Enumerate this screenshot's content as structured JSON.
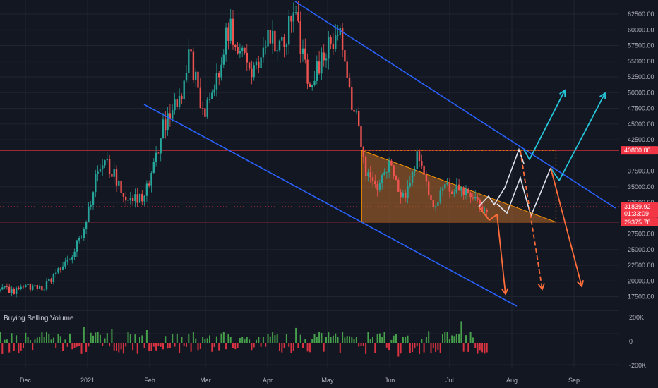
{
  "chart_data": {
    "type": "candlestick",
    "title": "",
    "x_ticks": [
      "Dec",
      "2021",
      "Feb",
      "Mar",
      "Apr",
      "May",
      "Jun",
      "Jul",
      "Aug",
      "Sep"
    ],
    "y_ticks": [
      17500,
      20000,
      22500,
      25000,
      27500,
      32500,
      35000,
      37500,
      42500,
      45000,
      47500,
      50000,
      52500,
      55000,
      57500,
      60000,
      62500
    ],
    "y_tick_labels": [
      "17500.00",
      "20000.00",
      "22500.00",
      "25000.00",
      "27500.00",
      "32500.00",
      "35000.00",
      "37500.00",
      "42500.00",
      "45000.00",
      "47500.00",
      "50000.00",
      "52500.00",
      "55000.00",
      "57500.00",
      "60000.00",
      "62500.00"
    ],
    "ylim": [
      16000,
      65000
    ],
    "grid": true,
    "price_series": {
      "dates": [
        "2020-11-23",
        "2020-12-01",
        "2020-12-10",
        "2020-12-20",
        "2020-12-28",
        "2021-01-03",
        "2021-01-08",
        "2021-01-14",
        "2021-01-22",
        "2021-01-30",
        "2021-02-08",
        "2021-02-16",
        "2021-02-21",
        "2021-02-28",
        "2021-03-06",
        "2021-03-13",
        "2021-03-24",
        "2021-04-01",
        "2021-04-09",
        "2021-04-14",
        "2021-04-22",
        "2021-05-01",
        "2021-05-08",
        "2021-05-12",
        "2021-05-17",
        "2021-05-19",
        "2021-05-24",
        "2021-06-01",
        "2021-06-08",
        "2021-06-15",
        "2021-06-22",
        "2021-06-30",
        "2021-07-08",
        "2021-07-15",
        "2021-07-20"
      ],
      "close": [
        18500,
        19000,
        18800,
        22500,
        26500,
        33000,
        40000,
        37000,
        32000,
        34000,
        44500,
        49000,
        57000,
        45500,
        51500,
        61000,
        52500,
        58500,
        57500,
        63500,
        51000,
        57800,
        58500,
        50000,
        43500,
        38500,
        34800,
        38000,
        33500,
        40000,
        32500,
        35000,
        34500,
        32000,
        31800
      ]
    },
    "current_price": "31839.92",
    "countdown": "01:33:09",
    "resistance_level": "40800.00",
    "support_level": "29375.78",
    "volume": {
      "title": "Buying Selling Volume",
      "y_tick_labels": [
        "200K",
        "0",
        "-200K"
      ]
    }
  },
  "colors": {
    "background": "#131722",
    "grid": "#1f2431",
    "bull": "#26a69a",
    "bear": "#ef5350",
    "channel": "#2962ff",
    "level_line": "#f23645",
    "triangle_fill": "#b8692a",
    "triangle_edge": "#ff9800",
    "bear_arrow": "#ff6d3a",
    "bull_arrow": "#26c6da",
    "scenario_path": "#e0e3eb",
    "vol_buy": "#4caf50",
    "vol_sell": "#f23645"
  }
}
